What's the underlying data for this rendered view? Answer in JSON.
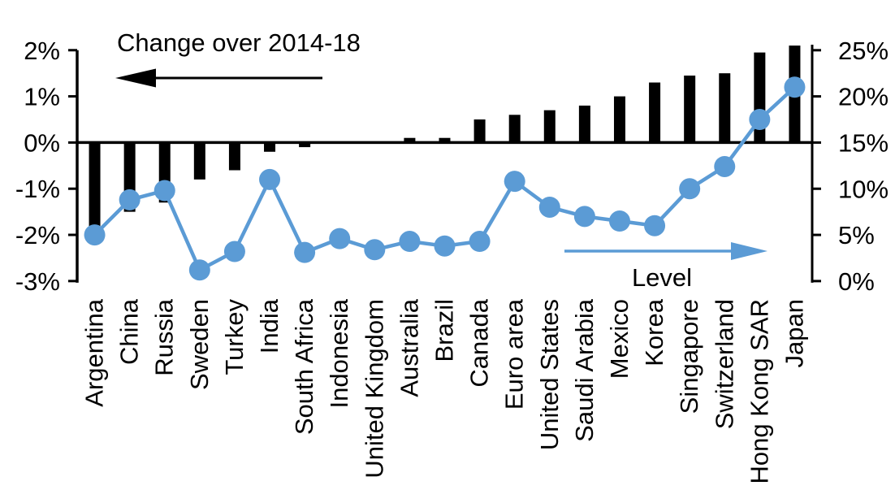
{
  "chart_data": {
    "type": "bar",
    "subtype": "combo-bar-line-dual-axis",
    "title": "",
    "categories": [
      "Argentina",
      "China",
      "Russia",
      "Sweden",
      "Turkey",
      "India",
      "South Africa",
      "Indonesia",
      "United Kingdom",
      "Australia",
      "Brazil",
      "Canada",
      "Euro area",
      "United States",
      "Saudi Arabia",
      "Mexico",
      "Korea",
      "Singapore",
      "Switzerland",
      "Hong Kong SAR",
      "Japan"
    ],
    "series": [
      {
        "name": "Change over 2014-18",
        "type": "bar",
        "axis": "left",
        "color": "#000000",
        "values": [
          -1.9,
          -1.5,
          -1.3,
          -0.8,
          -0.6,
          -0.2,
          -0.1,
          0,
          0,
          0.1,
          0.1,
          0.5,
          0.6,
          0.7,
          0.8,
          1.0,
          1.3,
          1.45,
          1.5,
          1.95,
          2.1
        ]
      },
      {
        "name": "Level",
        "type": "line",
        "axis": "right",
        "color": "#5B9BD5",
        "values": [
          5.0,
          8.8,
          9.8,
          1.2,
          3.2,
          11.0,
          3.1,
          4.6,
          3.4,
          4.3,
          3.8,
          4.3,
          10.8,
          8.0,
          7.0,
          6.5,
          6.0,
          10.0,
          12.4,
          17.5,
          21.0
        ]
      }
    ],
    "left_axis": {
      "min": -3,
      "max": 2,
      "tick_values": [
        2,
        1,
        0,
        -1,
        -2,
        -3
      ],
      "tick_labels": [
        "2%",
        "1%",
        "0%",
        "-1%",
        "-2%",
        "-3%"
      ],
      "unit": "%"
    },
    "right_axis": {
      "min": 0,
      "max": 25,
      "tick_values": [
        25,
        20,
        15,
        10,
        5,
        0
      ],
      "tick_labels": [
        "25%",
        "20%",
        "15%",
        "10%",
        "5%",
        "0%"
      ],
      "unit": "%"
    },
    "grid": false,
    "legend_position": "none",
    "annotations": [
      {
        "id": "change-annotation",
        "text": "Change over 2014-18",
        "arrow_direction": "left",
        "color": "#000000"
      },
      {
        "id": "level-annotation",
        "text": "Level",
        "arrow_direction": "right",
        "color": "#5B9BD5"
      }
    ]
  },
  "colors": {
    "bar": "#000000",
    "line": "#5B9BD5",
    "background": "#FFFFFF",
    "text": "#000000"
  }
}
